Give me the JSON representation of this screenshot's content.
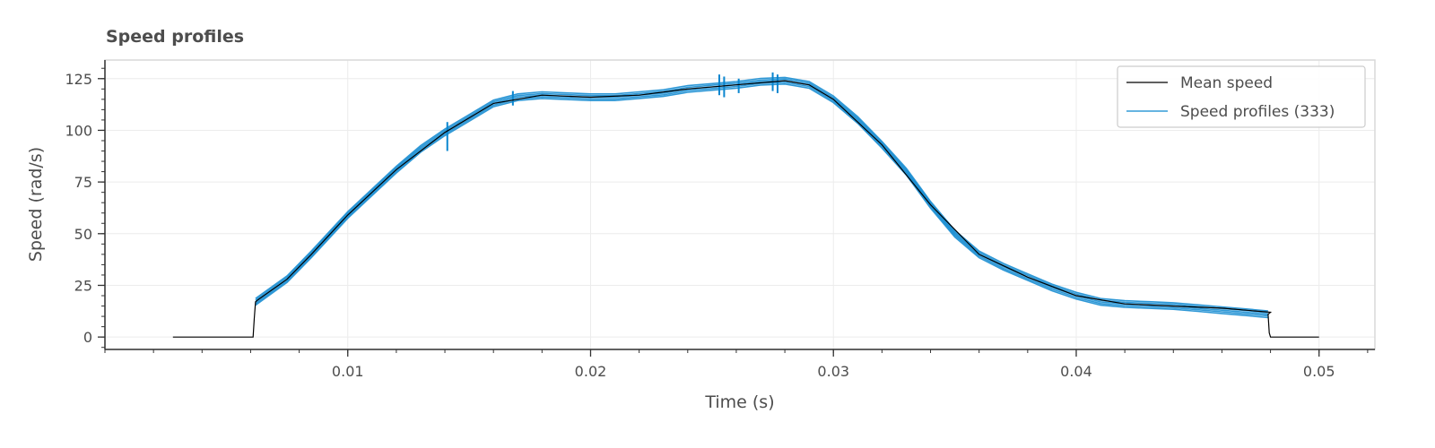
{
  "chart_data": {
    "type": "line",
    "title": "Speed profiles",
    "xlabel": "Time (s)",
    "ylabel": "Speed (rad/s)",
    "xlim": [
      0.0,
      0.0523
    ],
    "ylim": [
      -6,
      134
    ],
    "x_ticks": [
      0.01,
      0.02,
      0.03,
      0.04,
      0.05
    ],
    "x_tick_labels": [
      "0.01",
      "0.02",
      "0.03",
      "0.04",
      "0.05"
    ],
    "y_ticks": [
      0,
      25,
      50,
      75,
      100,
      125
    ],
    "y_tick_labels": [
      "0",
      "25",
      "50",
      "75",
      "100",
      "125"
    ],
    "grid": true,
    "legend_position": "top-right",
    "series": [
      {
        "name": "Mean speed",
        "color": "#000000",
        "x": [
          0.0028,
          0.0061,
          0.00615,
          0.0062,
          0.0063,
          0.0075,
          0.0085,
          0.01,
          0.012,
          0.014,
          0.016,
          0.018,
          0.02,
          0.022,
          0.024,
          0.026,
          0.028,
          0.029,
          0.03,
          0.032,
          0.034,
          0.036,
          0.038,
          0.04,
          0.042,
          0.044,
          0.046,
          0.048,
          0.0479,
          0.04795,
          0.048,
          0.05
        ],
        "y": [
          0,
          0,
          9,
          17,
          18,
          28,
          40,
          59,
          81,
          99,
          113,
          117,
          116,
          117,
          120,
          122,
          124,
          122,
          115,
          93,
          64,
          40,
          29,
          20,
          16,
          15,
          14,
          12,
          11,
          2,
          0,
          0
        ]
      },
      {
        "name": "Speed profiles (333)",
        "color": "#0a86cf",
        "x": [
          0.0062,
          0.0075,
          0.0085,
          0.01,
          0.011,
          0.012,
          0.013,
          0.014,
          0.015,
          0.016,
          0.017,
          0.018,
          0.019,
          0.02,
          0.021,
          0.022,
          0.023,
          0.024,
          0.025,
          0.026,
          0.027,
          0.028,
          0.029,
          0.03,
          0.031,
          0.032,
          0.033,
          0.034,
          0.035,
          0.036,
          0.037,
          0.038,
          0.039,
          0.04,
          0.041,
          0.042,
          0.043,
          0.044,
          0.045,
          0.046,
          0.047,
          0.0479
        ],
        "y": [
          17,
          28,
          40,
          59,
          70,
          81,
          91,
          99,
          106,
          113,
          116,
          117,
          116.5,
          116,
          116,
          117,
          118,
          120,
          121,
          122,
          123.5,
          124,
          122,
          115,
          105,
          93,
          80,
          64,
          50,
          40,
          34,
          29,
          24,
          20,
          17,
          16,
          15.5,
          15,
          14,
          13,
          12,
          11
        ]
      }
    ],
    "legend_entries": [
      "Mean speed",
      "Speed profiles (333)"
    ]
  }
}
